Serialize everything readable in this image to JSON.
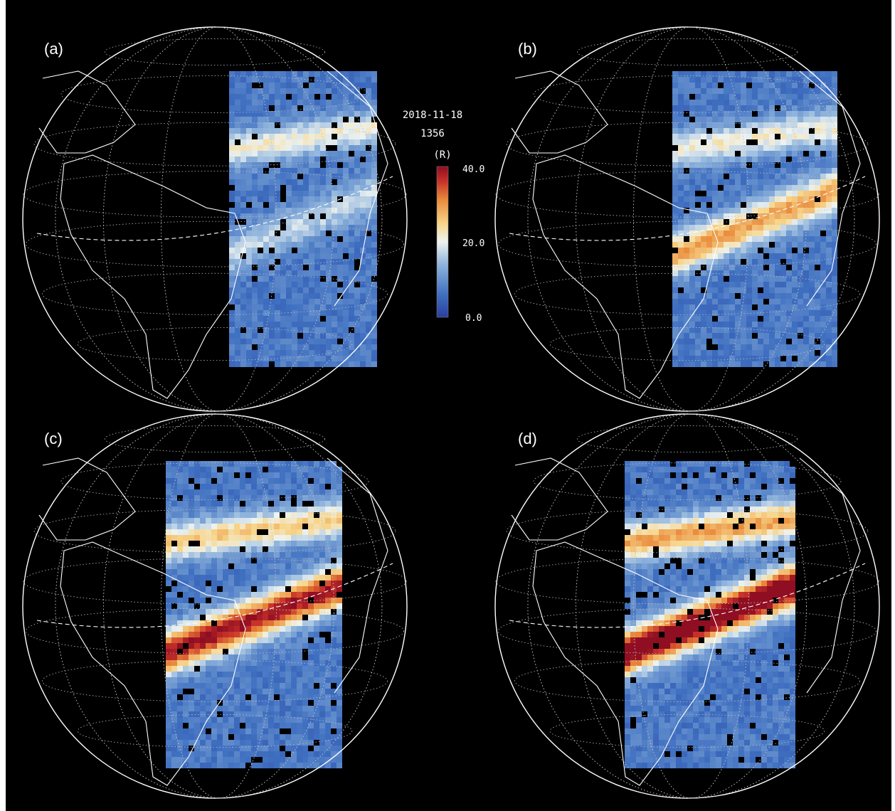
{
  "panels": [
    {
      "label": "(a)",
      "arc_intensity": [
        0.45,
        0.7,
        0.55
      ],
      "south_band_peak": 0.25,
      "north_band_peak": 0.35
    },
    {
      "label": "(b)",
      "arc_intensity": [
        0.55,
        0.75,
        0.6
      ],
      "south_band_peak": 0.55,
      "north_band_peak": 0.35
    },
    {
      "label": "(c)",
      "arc_intensity": [
        0.6,
        0.85,
        0.7
      ],
      "south_band_peak": 0.8,
      "north_band_peak": 0.45
    },
    {
      "label": "(d)",
      "arc_intensity": [
        0.65,
        0.9,
        0.75
      ],
      "south_band_peak": 0.95,
      "north_band_peak": 0.55
    }
  ],
  "colorbar": {
    "date": "2018-11-18",
    "wavelength": "1356",
    "unit": "(R)",
    "ticks": [
      "40.0",
      "20.0",
      "0.0"
    ],
    "range": [
      0,
      40
    ],
    "colors": [
      "#2b3f9e",
      "#3f6fc0",
      "#8fb4dc",
      "#eef3f0",
      "#f7d58a",
      "#e98a3a",
      "#c8322a",
      "#8f0e22"
    ]
  },
  "colors": {
    "background": "#000000",
    "coastline": "#ffffff",
    "grid": "#bfbfbf"
  }
}
